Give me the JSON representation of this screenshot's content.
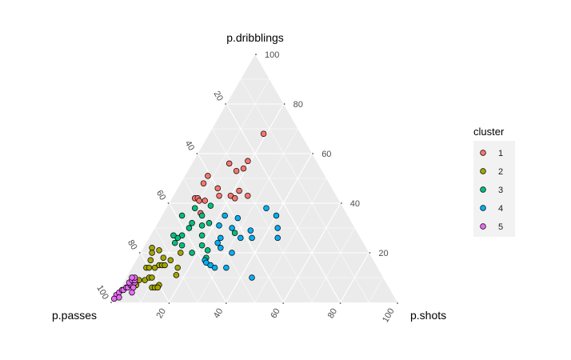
{
  "chart_data": {
    "type": "scatter",
    "title": "",
    "vertex_labels": {
      "top": "p.dribblings",
      "left": "p.passes",
      "right": "p.shots"
    },
    "ticks": {
      "top_axis": [
        "100",
        "80",
        "60",
        "40",
        "20"
      ],
      "left_axis": [
        "20",
        "40",
        "60",
        "80",
        "100"
      ],
      "bottom_axis": [
        "20",
        "40",
        "60",
        "80",
        "100"
      ]
    },
    "grid": true,
    "legend": {
      "title": "cluster",
      "position": "right",
      "entries": [
        "1",
        "2",
        "3",
        "4",
        "5"
      ]
    },
    "colors": {
      "1": "#F8766D",
      "2": "#A3A500",
      "3": "#00BF7D",
      "4": "#00B0F6",
      "5": "#E76BF3",
      "panel": "#EBEBEB",
      "grid": "#FFFFFF",
      "axis_text": "#4D4D4D"
    },
    "series": [
      {
        "name": "1",
        "points": [
          {
            "shots": 19,
            "dribblings": 68
          },
          {
            "shots": 13,
            "dribblings": 56
          },
          {
            "shots": 19,
            "dribblings": 57
          },
          {
            "shots": 17,
            "dribblings": 53
          },
          {
            "shots": 19,
            "dribblings": 54
          },
          {
            "shots": 8,
            "dribblings": 51
          },
          {
            "shots": 8,
            "dribblings": 48
          },
          {
            "shots": 14,
            "dribblings": 46
          },
          {
            "shots": 8,
            "dribblings": 42
          },
          {
            "shots": 9,
            "dribblings": 42
          },
          {
            "shots": 10,
            "dribblings": 41
          },
          {
            "shots": 12,
            "dribblings": 41
          },
          {
            "shots": 22,
            "dribblings": 45
          },
          {
            "shots": 20,
            "dribblings": 43
          },
          {
            "shots": 22,
            "dribblings": 42
          },
          {
            "shots": 26,
            "dribblings": 43
          },
          {
            "shots": 13,
            "dribblings": 36
          },
          {
            "shots": 16,
            "dribblings": 43
          }
        ]
      },
      {
        "name": "2",
        "points": [
          {
            "shots": 3,
            "dribblings": 22
          },
          {
            "shots": 4,
            "dribblings": 20
          },
          {
            "shots": 6,
            "dribblings": 21
          },
          {
            "shots": 5,
            "dribblings": 17
          },
          {
            "shots": 9,
            "dribblings": 18
          },
          {
            "shots": 5,
            "dribblings": 14
          },
          {
            "shots": 6,
            "dribblings": 14
          },
          {
            "shots": 8,
            "dribblings": 14
          },
          {
            "shots": 9,
            "dribblings": 15
          },
          {
            "shots": 10,
            "dribblings": 15
          },
          {
            "shots": 11,
            "dribblings": 15
          },
          {
            "shots": 12,
            "dribblings": 17
          },
          {
            "shots": 14,
            "dribblings": 20
          },
          {
            "shots": 5,
            "dribblings": 9
          },
          {
            "shots": 7,
            "dribblings": 9
          },
          {
            "shots": 8,
            "dribblings": 10
          },
          {
            "shots": 9,
            "dribblings": 10
          },
          {
            "shots": 11,
            "dribblings": 6
          },
          {
            "shots": 12,
            "dribblings": 6
          },
          {
            "shots": 13,
            "dribblings": 7
          },
          {
            "shots": 13,
            "dribblings": 6
          },
          {
            "shots": 17,
            "dribblings": 11
          },
          {
            "shots": 16,
            "dribblings": 14
          },
          {
            "shots": 5,
            "dribblings": 7
          }
        ]
      },
      {
        "name": "3",
        "points": [
          {
            "shots": 7,
            "dribblings": 35
          },
          {
            "shots": 10,
            "dribblings": 38
          },
          {
            "shots": 15,
            "dribblings": 39
          },
          {
            "shots": 14,
            "dribblings": 35
          },
          {
            "shots": 16,
            "dribblings": 31
          },
          {
            "shots": 18,
            "dribblings": 32
          },
          {
            "shots": 12,
            "dribblings": 32
          },
          {
            "shots": 12,
            "dribblings": 30
          },
          {
            "shots": 11,
            "dribblings": 27
          },
          {
            "shots": 10,
            "dribblings": 26
          },
          {
            "shots": 8,
            "dribblings": 27
          },
          {
            "shots": 10,
            "dribblings": 24
          },
          {
            "shots": 13,
            "dribblings": 23
          },
          {
            "shots": 18,
            "dribblings": 27
          },
          {
            "shots": 18,
            "dribblings": 20
          },
          {
            "shots": 20,
            "dribblings": 23
          },
          {
            "shots": 23,
            "dribblings": 21
          },
          {
            "shots": 29,
            "dribblings": 28
          },
          {
            "shots": 24,
            "dribblings": 18
          }
        ]
      },
      {
        "name": "4",
        "points": [
          {
            "shots": 22,
            "dribblings": 35
          },
          {
            "shots": 27,
            "dribblings": 34
          },
          {
            "shots": 35,
            "dribblings": 38
          },
          {
            "shots": 40,
            "dribblings": 35
          },
          {
            "shots": 22,
            "dribblings": 31
          },
          {
            "shots": 27,
            "dribblings": 30
          },
          {
            "shots": 34,
            "dribblings": 29
          },
          {
            "shots": 43,
            "dribblings": 30
          },
          {
            "shots": 45,
            "dribblings": 26
          },
          {
            "shots": 32,
            "dribblings": 26
          },
          {
            "shots": 36,
            "dribblings": 26
          },
          {
            "shots": 25,
            "dribblings": 26
          },
          {
            "shots": 25,
            "dribblings": 24
          },
          {
            "shots": 27,
            "dribblings": 22
          },
          {
            "shots": 32,
            "dribblings": 20
          },
          {
            "shots": 24,
            "dribblings": 17
          },
          {
            "shots": 25,
            "dribblings": 16
          },
          {
            "shots": 27,
            "dribblings": 15
          },
          {
            "shots": 29,
            "dribblings": 14
          },
          {
            "shots": 33,
            "dribblings": 14
          },
          {
            "shots": 44,
            "dribblings": 10
          }
        ]
      },
      {
        "name": "5",
        "points": [
          {
            "shots": 0,
            "dribblings": 3
          },
          {
            "shots": 0.5,
            "dribblings": 4
          },
          {
            "shots": 1,
            "dribblings": 5
          },
          {
            "shots": 1.5,
            "dribblings": 5
          },
          {
            "shots": 2,
            "dribblings": 6
          },
          {
            "shots": 2.5,
            "dribblings": 6
          },
          {
            "shots": 3,
            "dribblings": 7
          },
          {
            "shots": 3.5,
            "dribblings": 7
          },
          {
            "shots": 4,
            "dribblings": 8
          },
          {
            "shots": 2,
            "dribblings": 8
          },
          {
            "shots": 2.5,
            "dribblings": 9
          },
          {
            "shots": 3.5,
            "dribblings": 9
          },
          {
            "shots": 3,
            "dribblings": 10
          },
          {
            "shots": 4.5,
            "dribblings": 6
          },
          {
            "shots": 5,
            "dribblings": 4
          },
          {
            "shots": 1.5,
            "dribblings": 2
          },
          {
            "shots": 0,
            "dribblings": 1.5
          },
          {
            "shots": 2,
            "dribblings": 10
          }
        ]
      }
    ]
  }
}
